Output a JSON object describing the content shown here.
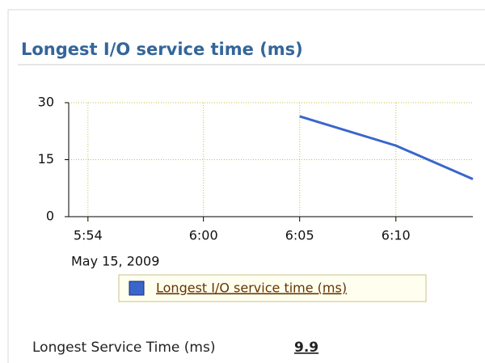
{
  "header": {
    "title": "Longest I/O service time (ms)"
  },
  "chart_data": {
    "type": "line",
    "x": [
      "6:05",
      "6:10",
      "6:14"
    ],
    "series": [
      {
        "name": "Longest I/O service time (ms)",
        "color": "#3a66cc",
        "values": [
          26.4,
          18.7,
          9.9
        ]
      }
    ],
    "xlim": [
      "5:53",
      "6:14"
    ],
    "xticks": [
      "5:54",
      "6:00",
      "6:05",
      "6:10"
    ],
    "x_sublabel": "May 15, 2009",
    "ylim": [
      0,
      30
    ],
    "yticks": [
      0,
      15,
      30
    ],
    "grid": true
  },
  "metric": {
    "label": "Longest Service Time (ms)",
    "value": 9.9
  }
}
